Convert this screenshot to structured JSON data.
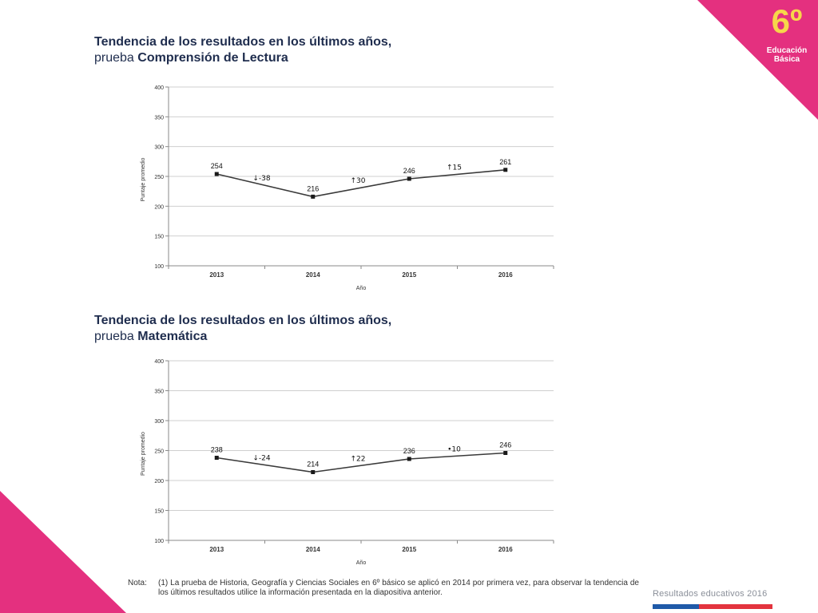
{
  "badge": {
    "number": "6º",
    "line1": "Educación",
    "line2": "Básica"
  },
  "charts": [
    {
      "title_line1": "Tendencia de los resultados en los últimos años,",
      "title_line2_prefix": "prueba ",
      "title_line2_bold": "Comprensión de Lectura"
    },
    {
      "title_line1": "Tendencia de los resultados en los últimos años,",
      "title_line2_prefix": "prueba ",
      "title_line2_bold": "Matemática"
    }
  ],
  "chart_data": [
    {
      "type": "line",
      "x": [
        "2013",
        "2014",
        "2015",
        "2016"
      ],
      "values": [
        254,
        216,
        246,
        261
      ],
      "data_labels": [
        "254",
        "216",
        "246",
        "261"
      ],
      "change_labels": [
        "↓-38",
        "↑30",
        "↑15"
      ],
      "ylim": [
        100,
        400
      ],
      "yticks": [
        100,
        150,
        200,
        250,
        300,
        350,
        400
      ],
      "ylabel": "Puntaje promedio",
      "xlabel": "Año",
      "grid": true,
      "line_color": "#3a3a3a"
    },
    {
      "type": "line",
      "x": [
        "2013",
        "2014",
        "2015",
        "2016"
      ],
      "values": [
        238,
        214,
        236,
        246
      ],
      "data_labels": [
        "238",
        "214",
        "236",
        "246"
      ],
      "change_labels": [
        "↓-24",
        "↑22",
        "•10"
      ],
      "ylim": [
        100,
        400
      ],
      "yticks": [
        100,
        150,
        200,
        250,
        300,
        350,
        400
      ],
      "ylabel": "Puntaje promedio",
      "xlabel": "Año",
      "grid": true,
      "line_color": "#3a3a3a"
    }
  ],
  "note": {
    "label": "Nota:",
    "text": "(1) La prueba de Historia, Geografía y Ciencias Sociales en 6º básico se aplicó en 2014 por primera vez, para observar la tendencia de los últimos resultados utilice la información presentada en la diapositiva anterior."
  },
  "footer": {
    "brand": "Resultados educativos 2016"
  },
  "colors": {
    "accent": "#e4307f",
    "navy": "#1f2d4e",
    "badge_number": "#f7d64a"
  }
}
